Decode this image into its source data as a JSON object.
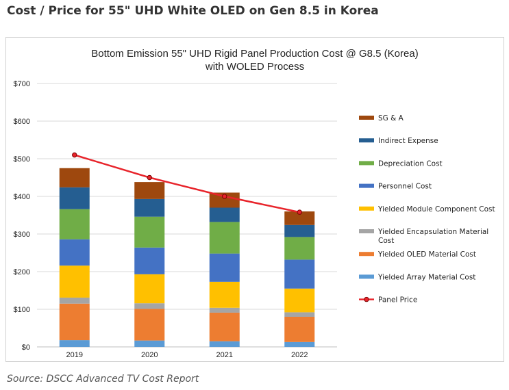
{
  "page": {
    "heading": "Cost / Price for 55\" UHD White OLED on Gen 8.5 in Korea",
    "source": "Source: DSCC Advanced TV Cost Report"
  },
  "chart_data": {
    "type": "bar",
    "stacked": true,
    "title_line1": "Bottom Emission 55\" UHD Rigid Panel Production Cost @ G8.5 (Korea)",
    "title_line2": "with WOLED Process",
    "categories": [
      "2019",
      "2020",
      "2021",
      "2022"
    ],
    "y_ticks": [
      "$0",
      "$100",
      "$200",
      "$300",
      "$400",
      "$500",
      "$600",
      "$700"
    ],
    "ylim": [
      0,
      700
    ],
    "grid": true,
    "legend_position": "right",
    "series": [
      {
        "name": "Yielded Array Material Cost",
        "color": "#5B9BD5",
        "values": [
          18,
          17,
          15,
          13
        ]
      },
      {
        "name": "Yielded OLED Material Cost",
        "color": "#ED7D31",
        "values": [
          97,
          84,
          76,
          67
        ]
      },
      {
        "name": "Yielded Encapsulation Material Cost",
        "color": "#A5A5A5",
        "values": [
          16,
          15,
          13,
          12
        ]
      },
      {
        "name": "Yielded Module Component Cost",
        "color": "#FFC000",
        "values": [
          85,
          77,
          69,
          63
        ]
      },
      {
        "name": "Personnel Cost",
        "color": "#4472C4",
        "values": [
          70,
          71,
          75,
          77
        ]
      },
      {
        "name": "Depreciation Cost",
        "color": "#70AD47",
        "values": [
          80,
          82,
          84,
          60
        ]
      },
      {
        "name": "Indirect Expense",
        "color": "#255E91",
        "values": [
          58,
          47,
          38,
          32
        ]
      },
      {
        "name": "SG & A",
        "color": "#9E480E",
        "values": [
          51,
          45,
          40,
          36
        ]
      }
    ],
    "line_series": {
      "name": "Panel Price",
      "color": "#E8242B",
      "values": [
        510,
        450,
        400,
        358
      ]
    },
    "legend_order": [
      "SG & A",
      "Indirect Expense",
      "Depreciation Cost",
      "Personnel Cost",
      "Yielded Module Component Cost",
      "Yielded Encapsulation Material Cost",
      "Yielded OLED Material Cost",
      "Yielded Array Material Cost",
      "Panel Price"
    ]
  }
}
